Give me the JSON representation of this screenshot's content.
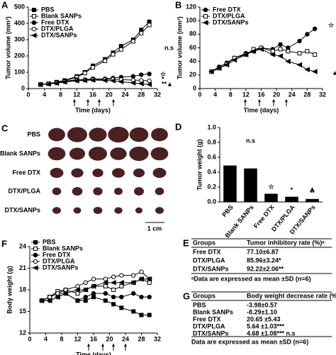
{
  "chart_data": [
    {
      "type": "line",
      "panel": "A",
      "xlabel": "Time (days)",
      "ylabel": "Tumor volume (mm³)",
      "x": [
        3,
        5,
        7,
        9,
        12,
        14,
        16,
        19,
        21,
        23,
        26,
        28,
        30
      ],
      "xlim": [
        0,
        32
      ],
      "xticks": [
        0,
        4,
        8,
        12,
        16,
        20,
        24,
        28,
        32
      ],
      "ylim": [
        0,
        500
      ],
      "yticks": [
        0,
        100,
        200,
        300,
        400,
        500
      ],
      "legend": "upper left",
      "annotations": [
        "n.s",
        "☆",
        "*",
        "**▲"
      ],
      "series": [
        {
          "name": "PBS",
          "color": "#000",
          "marker": "square",
          "filled": true,
          "values": [
            25,
            30,
            40,
            50,
            75,
            100,
            140,
            180,
            220,
            260,
            300,
            360,
            410
          ]
        },
        {
          "name": "Blank SANPs",
          "color": "#000",
          "marker": "square",
          "filled": false,
          "values": [
            25,
            30,
            38,
            48,
            70,
            95,
            130,
            170,
            210,
            240,
            290,
            340,
            390
          ]
        },
        {
          "name": "Free DTX",
          "color": "#000",
          "marker": "circle",
          "filled": true,
          "values": [
            25,
            30,
            35,
            45,
            55,
            55,
            60,
            60,
            65,
            70,
            75,
            85,
            90
          ]
        },
        {
          "name": "DTX/PLGA",
          "color": "#000",
          "marker": "circle",
          "filled": false,
          "values": [
            25,
            30,
            35,
            42,
            50,
            52,
            55,
            55,
            58,
            55,
            52,
            50,
            48
          ]
        },
        {
          "name": "DTX/SANPs",
          "color": "#000",
          "marker": "triangle",
          "filled": true,
          "values": [
            25,
            28,
            33,
            40,
            48,
            50,
            52,
            50,
            48,
            42,
            35,
            30,
            25
          ]
        }
      ]
    },
    {
      "type": "line",
      "panel": "B",
      "xlabel": "Time (days)",
      "ylabel": "Tumor volume (mm³)",
      "x": [
        3,
        5,
        7,
        9,
        12,
        14,
        16,
        19,
        21,
        23,
        26,
        28,
        30
      ],
      "xlim": [
        0,
        32
      ],
      "xticks": [
        0,
        4,
        8,
        12,
        16,
        20,
        24,
        28,
        32
      ],
      "ylim": [
        0,
        120
      ],
      "yticks": [
        0,
        20,
        40,
        60,
        80,
        100,
        120
      ],
      "legend": "upper left",
      "annotations": [
        "☆",
        "▲"
      ],
      "series": [
        {
          "name": "Free DTX",
          "color": "#000",
          "marker": "circle",
          "filled": true,
          "values": [
            25,
            32,
            38,
            45,
            52,
            55,
            60,
            58,
            65,
            60,
            70,
            80,
            88
          ]
        },
        {
          "name": "DTX/PLGA",
          "color": "#000",
          "marker": "square",
          "filled": false,
          "values": [
            25,
            30,
            36,
            45,
            50,
            58,
            60,
            55,
            58,
            55,
            52,
            55,
            50
          ]
        },
        {
          "name": "DTX/SANPs",
          "color": "#000",
          "marker": "triangle",
          "filled": true,
          "values": [
            25,
            30,
            35,
            42,
            50,
            55,
            58,
            50,
            48,
            40,
            35,
            28,
            25
          ]
        }
      ]
    },
    {
      "type": "bar",
      "panel": "D",
      "ylabel": "Tumor weight (g)",
      "categories": [
        "PBS",
        "Blank SANPs",
        "Free DTX",
        "DTX/PLGA",
        "DTX/SANPs"
      ],
      "values": [
        0.49,
        0.45,
        0.11,
        0.07,
        0.04
      ],
      "color": "#000",
      "ylim": [
        0,
        1
      ],
      "yticks": [
        {
          "value": 0,
          "label": "0.0"
        },
        0.2,
        0.4,
        0.6,
        0.8,
        {
          "value": 1,
          "label": "1.0"
        }
      ],
      "annotations": [
        "n.s",
        "☆",
        "*",
        "▲",
        "**"
      ]
    },
    {
      "type": "line",
      "panel": "F",
      "xlabel": "Time (days)",
      "ylabel": "Body weight (g)",
      "x": [
        3,
        5,
        7,
        9,
        12,
        14,
        16,
        19,
        21,
        23,
        26,
        28,
        30
      ],
      "xlim": [
        0,
        32
      ],
      "xticks": [
        0,
        4,
        8,
        12,
        16,
        20,
        24,
        28,
        32
      ],
      "ylim": [
        12,
        24
      ],
      "yticks": [
        12,
        15,
        18,
        21,
        24
      ],
      "legend": "upper left",
      "annotations": [],
      "series": [
        {
          "name": "PBS",
          "color": "#000",
          "marker": "square",
          "filled": true,
          "values": [
            16.5,
            17,
            17.5,
            17.5,
            16.5,
            16.5,
            17,
            16.5,
            16,
            15.5,
            15,
            14.5,
            14.5
          ]
        },
        {
          "name": "Blank SANPs",
          "color": "#000",
          "marker": "square",
          "filled": false,
          "values": [
            16.5,
            17,
            17.8,
            18,
            17.5,
            18,
            18.5,
            18.5,
            18,
            18.5,
            19,
            19.5,
            19
          ]
        },
        {
          "name": "Free DTX",
          "color": "#000",
          "marker": "circle",
          "filled": true,
          "values": [
            16.5,
            16.5,
            17,
            17.5,
            16.5,
            17,
            17.5,
            17.5,
            17,
            17,
            17.5,
            17,
            17
          ]
        },
        {
          "name": "DTX/PLGA",
          "color": "#000",
          "marker": "circle",
          "filled": false,
          "values": [
            16.5,
            17,
            17.5,
            18,
            18.5,
            19,
            19.5,
            19.5,
            19.8,
            20,
            20,
            20.5,
            19.5
          ]
        },
        {
          "name": "DTX/SANPs",
          "color": "#000",
          "marker": "triangle",
          "filled": true,
          "values": [
            16.5,
            16.5,
            17,
            17.5,
            18,
            18,
            18.5,
            19,
            19,
            19,
            19,
            19.5,
            19.5
          ]
        }
      ]
    }
  ],
  "panel_c": {
    "panel": "C",
    "rows": [
      "PBS",
      "Blank SANPs",
      "Free DTX",
      "DTX/PLGA",
      "DTX/SANPs"
    ],
    "scale": "1 cm"
  },
  "table_e": {
    "panel": "E",
    "header": [
      "Groups",
      "Tumor inhibitory rate (%)ᵃ"
    ],
    "rows": [
      [
        "Free DTX",
        "77.10±6.87"
      ],
      [
        "DTX/PLGA",
        "85.96±3.24*"
      ],
      [
        "DTX/SANPs",
        "92.22±2.06**"
      ]
    ],
    "footnote": "ᵃData are expressed as mean ±SD (n=6)"
  },
  "table_g": {
    "panel": "G",
    "header": [
      "Groups",
      "Body weight decrease rate (%)ᵃ"
    ],
    "rows": [
      [
        "PBS",
        "-3.98±0.57"
      ],
      [
        "Blank SANPs",
        "-8.29±1.10"
      ],
      [
        "Free DTX",
        "20.65 ±5.43"
      ],
      [
        "DTX/PLGA",
        "5.64 ±1.03***"
      ],
      [
        "DTX/SANPs",
        "4.68 ±1.08*** n.s"
      ]
    ],
    "footnote": "Data are expressed as mean ±SD (n=6)"
  }
}
